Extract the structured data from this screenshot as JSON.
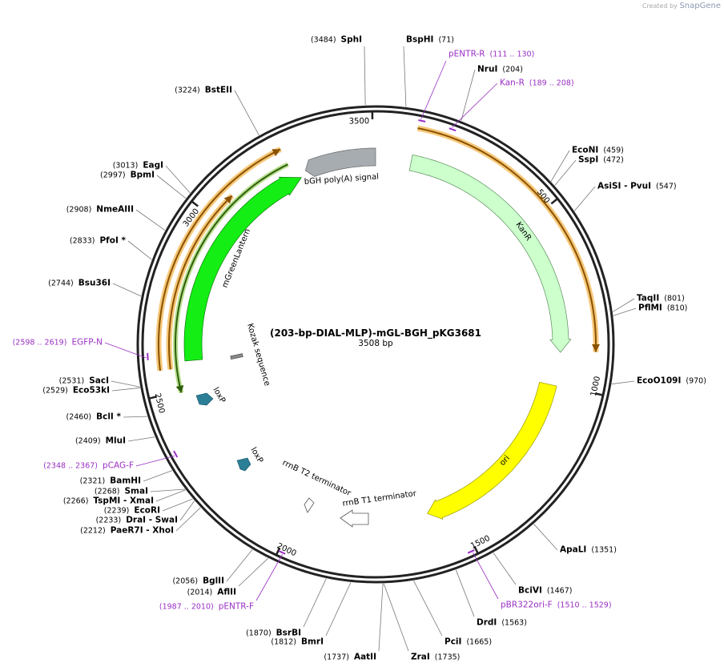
{
  "header": {
    "credit": "Created by",
    "brand": "SnapGene"
  },
  "map": {
    "title": "(203-bp-DIAL-MLP)-mGL-BGH_pKG3681",
    "length": "3508 bp",
    "ticks": [
      "500",
      "1000",
      "1500",
      "2000",
      "2500",
      "3000",
      "3500"
    ],
    "enzymes": [
      {
        "name": "SphI",
        "position": "(3484)"
      },
      {
        "name": "BspHI",
        "position": "(71)"
      },
      {
        "name": "NruI",
        "position": "(204)"
      },
      {
        "name": "EcoNI",
        "position": "(459)"
      },
      {
        "name": "SspI",
        "position": "(472)"
      },
      {
        "name": "AsiSI   - PvuI",
        "position": "(547)"
      },
      {
        "name": "TaqII",
        "position": "(801)"
      },
      {
        "name": "PflMI",
        "position": "(810)"
      },
      {
        "name": "EcoO109I",
        "position": "(970)"
      },
      {
        "name": "ApaLI",
        "position": "(1351)"
      },
      {
        "name": "BciVI",
        "position": "(1467)"
      },
      {
        "name": "DrdI",
        "position": "(1563)"
      },
      {
        "name": "PciI",
        "position": "(1665)"
      },
      {
        "name": "ZraI",
        "position": "(1735)"
      },
      {
        "name": "AatII",
        "position": "(1737)"
      },
      {
        "name": "BmrI",
        "position": "(1812)"
      },
      {
        "name": "BsrBI",
        "position": "(1870)"
      },
      {
        "name": "BglII",
        "position": "(2056)"
      },
      {
        "name": "AflII",
        "position": "(2014)"
      },
      {
        "name": "PaeR7I   - XhoI",
        "position": "(2212)"
      },
      {
        "name": "DraI   - SwaI",
        "position": "(2233)"
      },
      {
        "name": "EcoRI",
        "position": "(2239)"
      },
      {
        "name": "TspMI   - XmaI",
        "position": "(2266)"
      },
      {
        "name": "SmaI",
        "position": "(2268)"
      },
      {
        "name": "BamHI",
        "position": "(2321)"
      },
      {
        "name": "MluI",
        "position": "(2409)"
      },
      {
        "name": "BclI *",
        "position": "(2460)"
      },
      {
        "name": "Eco53kI",
        "position": "(2529)"
      },
      {
        "name": "SacI",
        "position": "(2531)"
      },
      {
        "name": "Bsu36I",
        "position": "(2744)"
      },
      {
        "name": "PfoI *",
        "position": "(2833)"
      },
      {
        "name": "NmeAIII",
        "position": "(2908)"
      },
      {
        "name": "BpmI",
        "position": "(2997)"
      },
      {
        "name": "EagI",
        "position": "(3013)"
      },
      {
        "name": "BstEII",
        "position": "(3224)"
      }
    ],
    "primers": [
      {
        "name": "pENTR-R",
        "range": "(111 .. 130)"
      },
      {
        "name": "Kan-R",
        "range": "(189 .. 208)"
      },
      {
        "name": "pBR322ori-F",
        "range": "(1510 .. 1529)"
      },
      {
        "name": "pENTR-F",
        "range": "(1987 .. 2010)"
      },
      {
        "name": "pCAG-F",
        "range": "(2348 .. 2367)"
      },
      {
        "name": "EGFP-N",
        "range": "(2598 .. 2619)"
      }
    ],
    "features": [
      {
        "label": "bGH poly(A) signal"
      },
      {
        "label": "KanR"
      },
      {
        "label": "ori"
      },
      {
        "label": "mGreenLantern"
      },
      {
        "label": "Kozak sequence"
      },
      {
        "label": "loxP"
      },
      {
        "label": "loxP"
      },
      {
        "label": "rrnB T2 terminator"
      },
      {
        "label": "rrnB T1 terminator"
      }
    ]
  }
}
